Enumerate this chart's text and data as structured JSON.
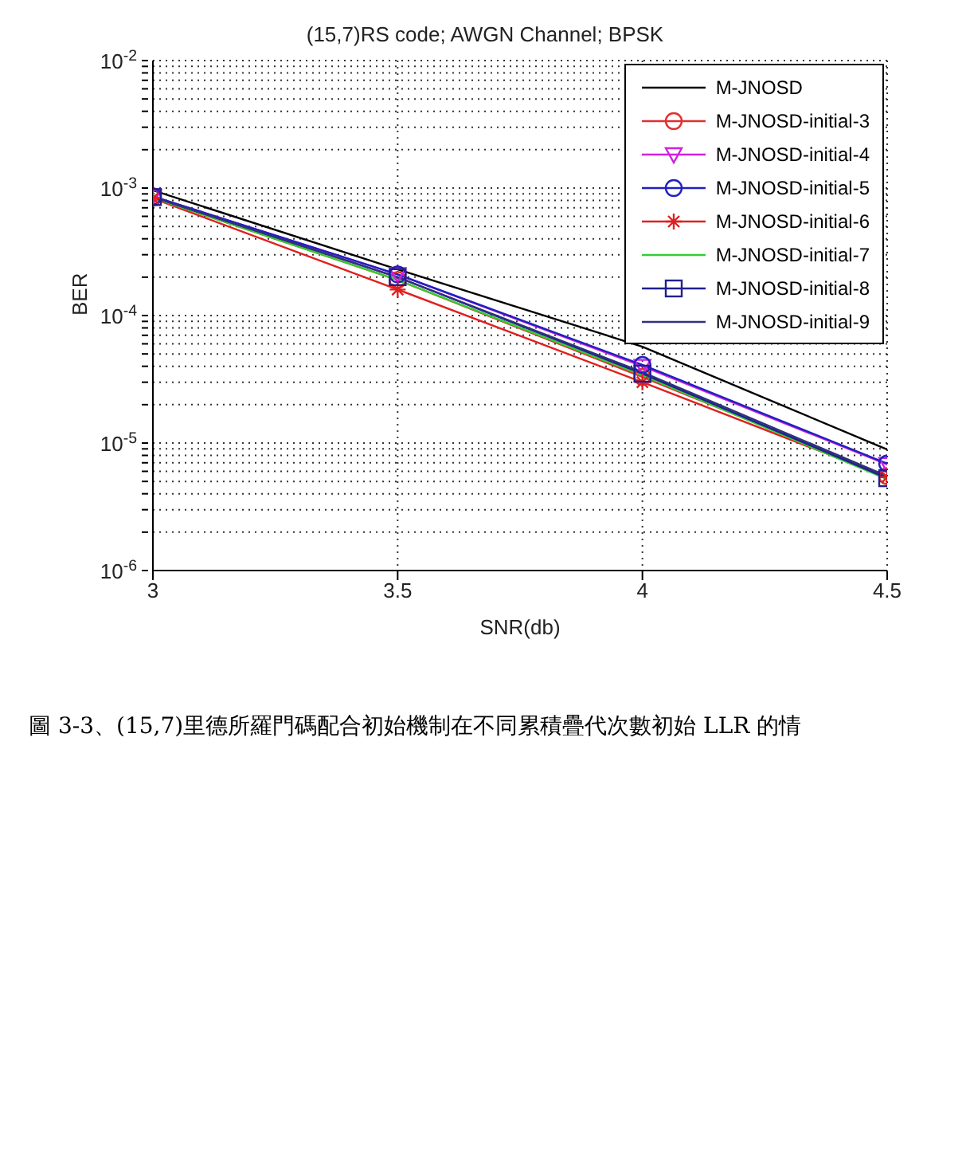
{
  "chart_data": {
    "type": "line",
    "title": "(15,7)RS code; AWGN Channel; BPSK",
    "xlabel": "SNR(db)",
    "ylabel": "BER",
    "x": [
      3,
      3.5,
      4,
      4.5
    ],
    "xlim": [
      3,
      4.5
    ],
    "xticks": [
      3,
      3.5,
      4,
      4.5
    ],
    "ylim": [
      1e-06,
      0.01
    ],
    "log": "y",
    "grid": true,
    "legend": "top right",
    "line_style": "solid",
    "yticks": [
      {
        "value": 1e-06,
        "label": "10$^{-6}$"
      },
      {
        "value": 2e-06,
        "label": null
      },
      {
        "value": 3e-06,
        "label": null
      },
      {
        "value": 4e-06,
        "label": null
      },
      {
        "value": 5e-06,
        "label": null
      },
      {
        "value": 6e-06,
        "label": null
      },
      {
        "value": 7e-06,
        "label": null
      },
      {
        "value": 8e-06,
        "label": null
      },
      {
        "value": 9e-06,
        "label": null
      },
      {
        "value": 1e-05,
        "label": "10$^{-5}$"
      },
      {
        "value": 2e-05,
        "label": null
      },
      {
        "value": 3e-05,
        "label": null
      },
      {
        "value": 4e-05,
        "label": null
      },
      {
        "value": 5e-05,
        "label": null
      },
      {
        "value": 6e-05,
        "label": null
      },
      {
        "value": 7e-05,
        "label": null
      },
      {
        "value": 8e-05,
        "label": null
      },
      {
        "value": 9e-05,
        "label": null
      },
      {
        "value": 0.0001,
        "label": "10$^{-4}$"
      },
      {
        "value": 0.0002,
        "label": null
      },
      {
        "value": 0.0003,
        "label": null
      },
      {
        "value": 0.0004,
        "label": null
      },
      {
        "value": 0.0005,
        "label": null
      },
      {
        "value": 0.0006,
        "label": null
      },
      {
        "value": 0.0007,
        "label": null
      },
      {
        "value": 0.0008,
        "label": null
      },
      {
        "value": 0.0009,
        "label": null
      },
      {
        "value": 0.001,
        "label": "10$^{-3}$"
      },
      {
        "value": 0.002,
        "label": null
      },
      {
        "value": 0.003,
        "label": null
      },
      {
        "value": 0.004,
        "label": null
      },
      {
        "value": 0.005,
        "label": null
      },
      {
        "value": 0.006,
        "label": null
      },
      {
        "value": 0.007,
        "label": null
      },
      {
        "value": 0.008,
        "label": null
      },
      {
        "value": 0.009,
        "label": null
      },
      {
        "value": 0.01,
        "label": "10$^{-2}$"
      }
    ],
    "series": [
      {
        "name": "M-JNOSD",
        "color": "#000000",
        "marker": "none",
        "values": [
          0.00096,
          0.00023,
          5.7e-05,
          8.9e-06
        ]
      },
      {
        "name": "M-JNOSD-initial-3",
        "color": "#e03030",
        "marker": "circle",
        "values": [
          0.00084,
          0.00019,
          3.3e-05,
          5.5e-06
        ]
      },
      {
        "name": "M-JNOSD-initial-4",
        "color": "#d020e0",
        "marker": "triangle",
        "values": [
          0.00086,
          0.00021,
          4e-05,
          6.8e-06
        ]
      },
      {
        "name": "M-JNOSD-initial-5",
        "color": "#2020c0",
        "marker": "circle",
        "values": [
          0.00086,
          0.00021,
          4.1e-05,
          6.9e-06
        ]
      },
      {
        "name": "M-JNOSD-initial-6",
        "color": "#e02020",
        "marker": "cross",
        "values": [
          0.00083,
          0.00016,
          3e-05,
          5.4e-06
        ]
      },
      {
        "name": "M-JNOSD-initial-7",
        "color": "#30d030",
        "marker": "none",
        "values": [
          0.00084,
          0.00019,
          3.4e-05,
          5.2e-06
        ]
      },
      {
        "name": "M-JNOSD-initial-8",
        "color": "#202090",
        "marker": "square",
        "values": [
          0.00085,
          0.0002,
          3.5e-05,
          5.3e-06
        ]
      },
      {
        "name": "M-JNOSD-initial-9",
        "color": "#303080",
        "marker": "none",
        "values": [
          0.00085,
          0.0002,
          3.6e-05,
          5.5e-06
        ]
      }
    ],
    "annotations": [
      "圖 3-3、(15,7)里德所羅門碼配合初始機制在不同累積疊代次數初始 LLR 的情"
    ]
  }
}
